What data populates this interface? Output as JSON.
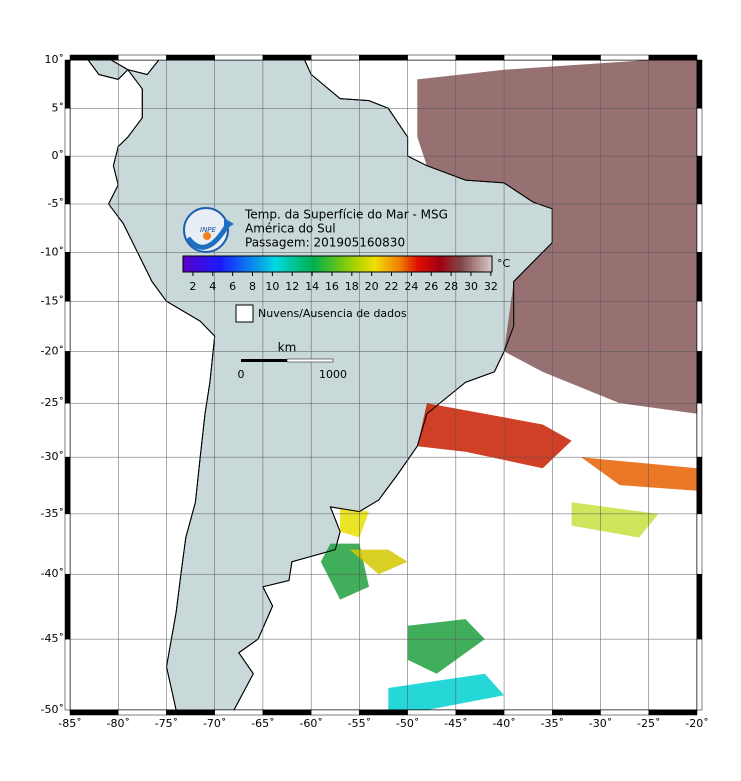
{
  "map": {
    "title": "Temp. da Superfície do Mar - MSG",
    "region": "América do Sul",
    "pass": "Passagem: 201905160830",
    "logo": "INPE",
    "unit": "°C",
    "legend": "Nuvens/Ausencia de dados",
    "scale_unit": "km",
    "scale_labels": [
      0,
      1000
    ],
    "colorbar_ticks": [
      2,
      4,
      6,
      8,
      10,
      12,
      14,
      16,
      18,
      20,
      22,
      24,
      26,
      28,
      30,
      32
    ],
    "xticks": [
      {
        "value": -85,
        "label": "-85˚"
      },
      {
        "value": -80,
        "label": "-80˚"
      },
      {
        "value": -75,
        "label": "-75˚"
      },
      {
        "value": -70,
        "label": "-70˚"
      },
      {
        "value": -65,
        "label": "-65˚"
      },
      {
        "value": -60,
        "label": "-60˚"
      },
      {
        "value": -55,
        "label": "-55˚"
      },
      {
        "value": -50,
        "label": "-50˚"
      },
      {
        "value": -45,
        "label": "-45˚"
      },
      {
        "value": -40,
        "label": "-40˚"
      },
      {
        "value": -35,
        "label": "-35˚"
      },
      {
        "value": -30,
        "label": "-30˚"
      },
      {
        "value": -25,
        "label": "-25˚"
      },
      {
        "value": -20,
        "label": "-20˚"
      }
    ],
    "yticks": [
      {
        "value": 10,
        "label": "10˚"
      },
      {
        "value": 5,
        "label": "5˚"
      },
      {
        "value": 0,
        "label": "0˚"
      },
      {
        "value": -5,
        "label": "-5˚"
      },
      {
        "value": -10,
        "label": "-10˚"
      },
      {
        "value": -15,
        "label": "-15˚"
      },
      {
        "value": -20,
        "label": "-20˚"
      },
      {
        "value": -25,
        "label": "-25˚"
      },
      {
        "value": -30,
        "label": "-30˚"
      },
      {
        "value": -35,
        "label": "-35˚"
      },
      {
        "value": -40,
        "label": "-40˚"
      },
      {
        "value": -45,
        "label": "-45˚"
      },
      {
        "value": -50,
        "label": "-50˚"
      }
    ]
  }
}
